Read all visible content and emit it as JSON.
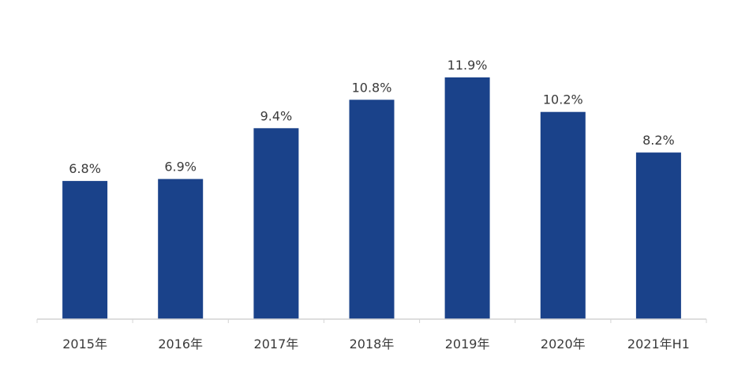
{
  "chart_data": {
    "type": "bar",
    "categories": [
      "2015年",
      "2016年",
      "2017年",
      "2018年",
      "2019年",
      "2020年",
      "2021年H1"
    ],
    "values": [
      6.8,
      6.9,
      9.4,
      10.8,
      11.9,
      10.2,
      8.2
    ],
    "data_labels": [
      "6.8%",
      "6.9%",
      "9.4%",
      "10.8%",
      "11.9%",
      "10.2%",
      "8.2%"
    ],
    "value_unit": "%",
    "ylim": [
      0,
      11.9
    ],
    "grid": false,
    "legend": "none",
    "colors": {
      "bar": "#1a428a",
      "axis": "#d4d4d4",
      "text": "#3a3a3a"
    }
  }
}
